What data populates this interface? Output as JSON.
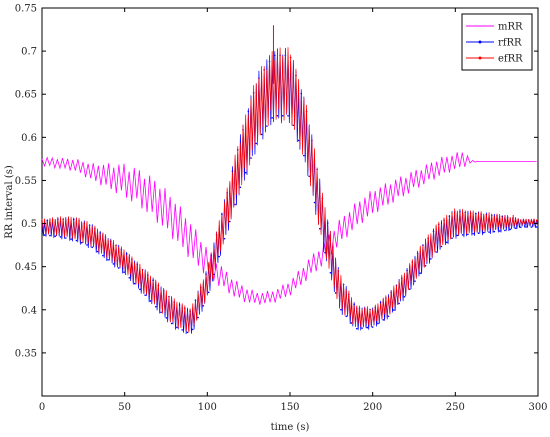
{
  "chart_data": {
    "type": "line",
    "title": "",
    "xlabel": "time (s)",
    "ylabel": "RR interval (s)",
    "xlim": [
      0,
      300
    ],
    "ylim": [
      0.3,
      0.75
    ],
    "x_ticks": [
      0,
      50,
      100,
      150,
      200,
      250,
      300
    ],
    "y_ticks": [
      0.35,
      0.4,
      0.45,
      0.5,
      0.55,
      0.6,
      0.65,
      0.7,
      0.75
    ],
    "x_tick_labels": [
      "0",
      "50",
      "100",
      "150",
      "200",
      "250",
      "300"
    ],
    "y_tick_labels": [
      "0.35",
      "0.4",
      "0.45",
      "0.5",
      "0.55",
      "0.6",
      "0.65",
      "0.7",
      "0.75"
    ],
    "grid": false,
    "legend_position": "top-right",
    "series": [
      {
        "name": "mRR",
        "color": "#ff00ff",
        "x": [
          0,
          10,
          20,
          30,
          40,
          50,
          60,
          70,
          80,
          90,
          100,
          110,
          120,
          130,
          140,
          150,
          160,
          170,
          180,
          190,
          200,
          210,
          220,
          230,
          240,
          250,
          255,
          260,
          265,
          270,
          280,
          290,
          300
        ],
        "y": [
          0.572,
          0.57,
          0.568,
          0.56,
          0.555,
          0.55,
          0.54,
          0.525,
          0.505,
          0.48,
          0.455,
          0.435,
          0.42,
          0.413,
          0.415,
          0.425,
          0.445,
          0.465,
          0.49,
          0.51,
          0.525,
          0.535,
          0.545,
          0.555,
          0.565,
          0.572,
          0.575,
          0.572,
          0.572,
          0.572,
          0.572,
          0.572,
          0.572
        ],
        "amplitude": [
          0.004,
          0.005,
          0.006,
          0.008,
          0.012,
          0.016,
          0.018,
          0.02,
          0.02,
          0.018,
          0.014,
          0.01,
          0.008,
          0.006,
          0.006,
          0.007,
          0.009,
          0.011,
          0.012,
          0.012,
          0.012,
          0.011,
          0.01,
          0.009,
          0.009,
          0.008,
          0.008,
          0.001,
          0,
          0,
          0,
          0,
          0
        ]
      },
      {
        "name": "rfRR",
        "color": "#0000ff",
        "x": [
          0,
          10,
          20,
          30,
          40,
          50,
          60,
          70,
          80,
          90,
          100,
          110,
          120,
          130,
          140,
          150,
          160,
          170,
          180,
          190,
          200,
          210,
          220,
          230,
          240,
          250,
          260,
          270,
          280,
          290,
          300
        ],
        "y": [
          0.495,
          0.495,
          0.493,
          0.485,
          0.47,
          0.455,
          0.435,
          0.415,
          0.395,
          0.385,
          0.43,
          0.5,
          0.57,
          0.63,
          0.66,
          0.66,
          0.6,
          0.5,
          0.42,
          0.39,
          0.39,
          0.405,
          0.43,
          0.46,
          0.485,
          0.5,
          0.5,
          0.5,
          0.5,
          0.5,
          0.5
        ],
        "amplitude": [
          0.008,
          0.01,
          0.012,
          0.012,
          0.012,
          0.012,
          0.013,
          0.014,
          0.014,
          0.013,
          0.015,
          0.02,
          0.028,
          0.035,
          0.035,
          0.035,
          0.03,
          0.025,
          0.018,
          0.012,
          0.01,
          0.012,
          0.013,
          0.014,
          0.014,
          0.014,
          0.012,
          0.01,
          0.008,
          0.004,
          0.004
        ]
      },
      {
        "name": "efRR",
        "color": "#ff0000",
        "x": [
          0,
          10,
          20,
          30,
          40,
          50,
          60,
          70,
          80,
          90,
          100,
          110,
          120,
          130,
          140,
          150,
          160,
          170,
          180,
          190,
          200,
          210,
          220,
          230,
          240,
          250,
          260,
          270,
          280,
          290,
          300
        ],
        "y": [
          0.497,
          0.497,
          0.495,
          0.487,
          0.472,
          0.457,
          0.437,
          0.417,
          0.397,
          0.387,
          0.432,
          0.502,
          0.572,
          0.632,
          0.662,
          0.662,
          0.602,
          0.502,
          0.422,
          0.392,
          0.392,
          0.407,
          0.432,
          0.462,
          0.487,
          0.502,
          0.502,
          0.502,
          0.502,
          0.502,
          0.502
        ],
        "amplitude": [
          0.007,
          0.009,
          0.011,
          0.011,
          0.011,
          0.011,
          0.012,
          0.013,
          0.013,
          0.012,
          0.014,
          0.019,
          0.027,
          0.034,
          0.034,
          0.034,
          0.029,
          0.024,
          0.017,
          0.011,
          0.009,
          0.011,
          0.012,
          0.013,
          0.013,
          0.013,
          0.011,
          0.009,
          0.007,
          0.003,
          0.003
        ]
      }
    ],
    "annotations": [
      {
        "series": "efRR",
        "x": 140,
        "y": 0.73,
        "note": "spike"
      },
      {
        "series": "efRR",
        "x": 285,
        "y": 0.51,
        "note": "spike"
      }
    ]
  }
}
